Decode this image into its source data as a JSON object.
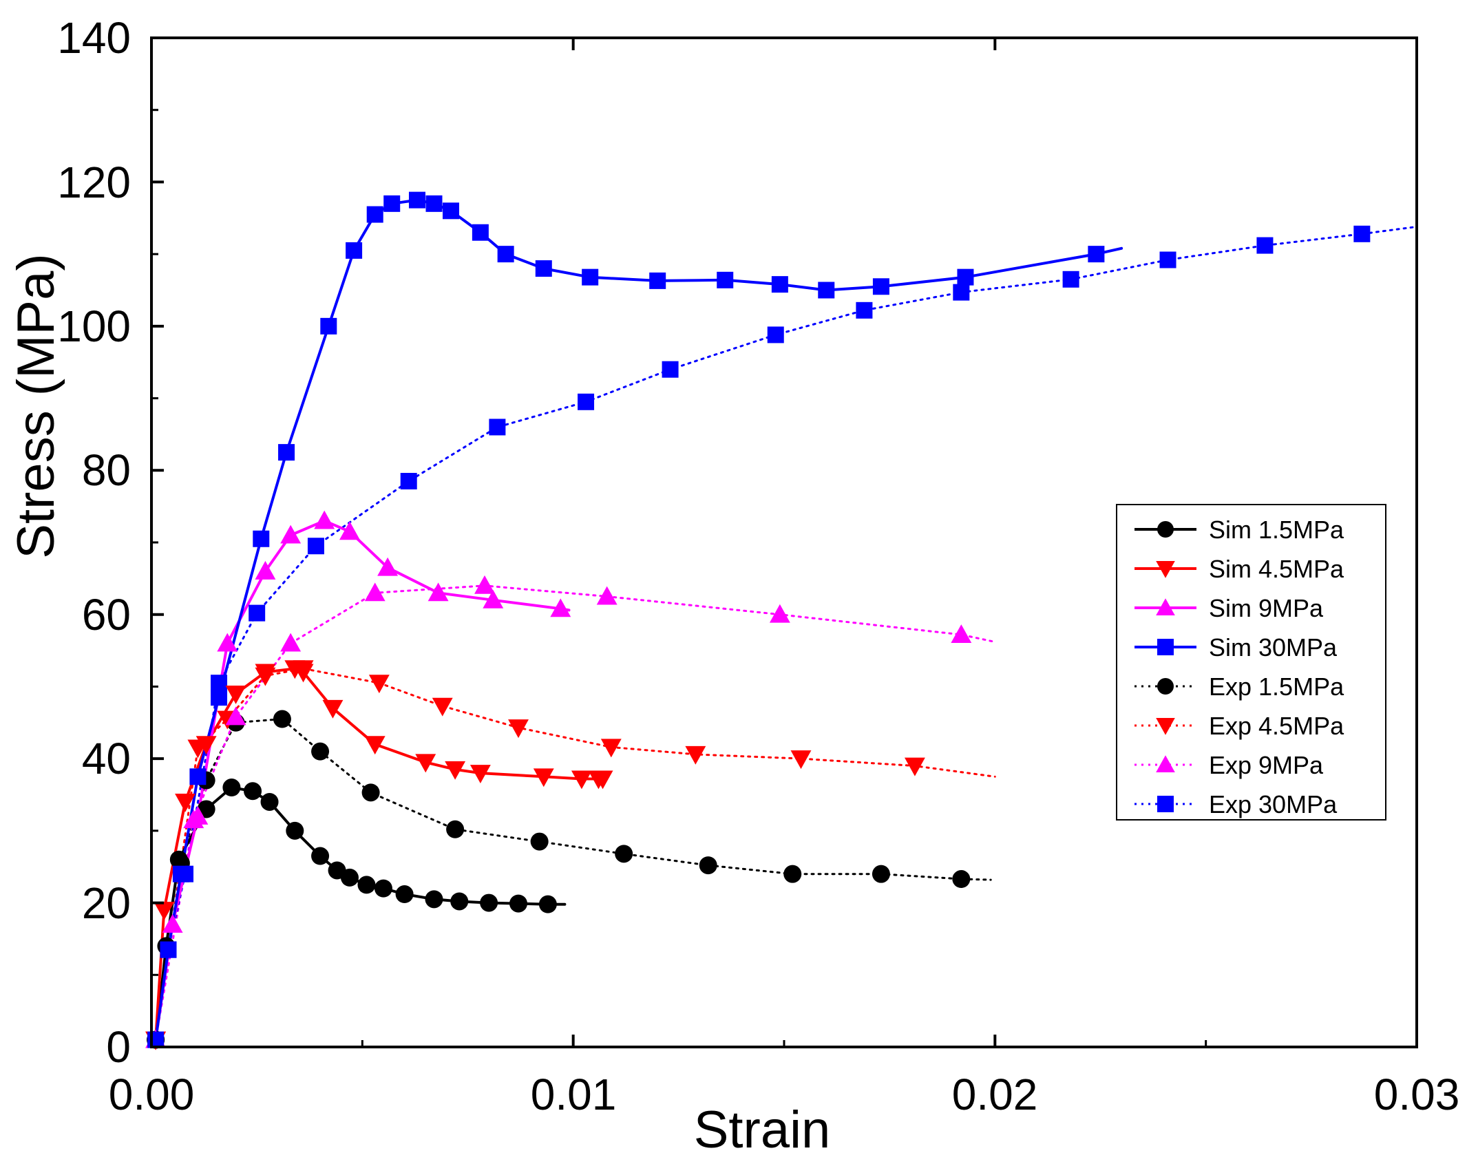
{
  "chart_data": {
    "type": "line",
    "xlabel": "Strain",
    "ylabel": "Stress (MPa)",
    "xlim": [
      0,
      0.03
    ],
    "ylim": [
      0,
      140
    ],
    "xticks": [
      0,
      0.01,
      0.02,
      0.03
    ],
    "xtick_labels": [
      "0.00",
      "0.01",
      "0.02",
      "0.03"
    ],
    "yticks": [
      0,
      20,
      40,
      60,
      80,
      100,
      120,
      140
    ],
    "ytick_labels": [
      "0",
      "20",
      "40",
      "60",
      "80",
      "100",
      "120",
      "140"
    ],
    "grid": false,
    "legend_position": "right-middle",
    "series": [
      {
        "name": "Sim 1.5MPa",
        "color": "#000000",
        "marker": "circle",
        "linestyle": "solid",
        "x": [
          0.0001,
          0.00035,
          0.00065,
          0.0013,
          0.0019,
          0.0024,
          0.0028,
          0.0034,
          0.004,
          0.0044,
          0.0047,
          0.0051,
          0.0055,
          0.006,
          0.0067,
          0.0073,
          0.008,
          0.0087,
          0.0094,
          0.0098
        ],
        "y": [
          1,
          14,
          26,
          33,
          36,
          35.5,
          34,
          30,
          26.5,
          24.5,
          23.5,
          22.5,
          22,
          21.2,
          20.5,
          20.2,
          20,
          19.9,
          19.8,
          19.8
        ]
      },
      {
        "name": "Sim 4.5MPa",
        "color": "#ff0000",
        "marker": "triangle-down",
        "linestyle": "solid",
        "x": [
          0.0001,
          0.0003,
          0.0008,
          0.0013,
          0.002,
          0.0027,
          0.0034,
          0.0036,
          0.0043,
          0.0053,
          0.0065,
          0.0072,
          0.0078,
          0.0093,
          0.0102,
          0.0106,
          0.0107
        ],
        "y": [
          1,
          19,
          34,
          42,
          49,
          52,
          52.5,
          52,
          47,
          42,
          39.5,
          38.5,
          38,
          37.5,
          37.2,
          37.2,
          37.2
        ]
      },
      {
        "name": "Sim 9MPa",
        "color": "#ff00ff",
        "marker": "triangle-up",
        "linestyle": "solid",
        "x": [
          0.0001,
          0.0005,
          0.0011,
          0.0018,
          0.0027,
          0.0033,
          0.0041,
          0.0047,
          0.0056,
          0.0068,
          0.0081,
          0.0097,
          0.0099
        ],
        "y": [
          1,
          17,
          32,
          56,
          66,
          71,
          73,
          71.5,
          66.5,
          63,
          62,
          60.8,
          60.6
        ]
      },
      {
        "name": "Sim 30MPa",
        "color": "#0000ff",
        "marker": "square",
        "linestyle": "solid",
        "x": [
          0.0001,
          0.0004,
          0.0007,
          0.0011,
          0.0016,
          0.0026,
          0.0032,
          0.0042,
          0.0048,
          0.0053,
          0.0057,
          0.0063,
          0.0067,
          0.0071,
          0.0078,
          0.0084,
          0.0093,
          0.0104,
          0.012,
          0.0136,
          0.0149,
          0.016,
          0.0173,
          0.0193,
          0.0224,
          0.023
        ],
        "y": [
          1,
          13.5,
          24,
          37.5,
          48.5,
          70.5,
          82.5,
          100,
          110.5,
          115.5,
          117,
          117.5,
          117,
          116,
          113,
          110,
          108,
          106.8,
          106.3,
          106.4,
          105.8,
          105,
          105.5,
          106.8,
          110,
          110.8
        ]
      },
      {
        "name": "Exp 1.5MPa",
        "color": "#000000",
        "marker": "circle",
        "linestyle": "dotted",
        "x": [
          0.0001,
          0.0007,
          0.0013,
          0.002,
          0.0031,
          0.004,
          0.0052,
          0.0072,
          0.0092,
          0.0112,
          0.0132,
          0.0152,
          0.0173,
          0.0192,
          0.0199
        ],
        "y": [
          1,
          25.5,
          37,
          45,
          45.5,
          41,
          35.3,
          30.2,
          28.5,
          26.8,
          25.2,
          24,
          24,
          23.3,
          23.2
        ]
      },
      {
        "name": "Exp 4.5MPa",
        "color": "#ff0000",
        "marker": "triangle-down",
        "linestyle": "dotted",
        "x": [
          0.0001,
          0.0011,
          0.0018,
          0.0027,
          0.0036,
          0.0054,
          0.0069,
          0.0087,
          0.0109,
          0.0129,
          0.0154,
          0.0181,
          0.02
        ],
        "y": [
          1,
          41.5,
          45.5,
          51.5,
          52.5,
          50.5,
          47.3,
          44.3,
          41.6,
          40.6,
          40,
          39,
          37.5
        ]
      },
      {
        "name": "Exp 9MPa",
        "color": "#ff00ff",
        "marker": "triangle-up",
        "linestyle": "dotted",
        "x": [
          0.0001,
          0.001,
          0.002,
          0.0033,
          0.0053,
          0.0079,
          0.0108,
          0.0149,
          0.0192,
          0.02
        ],
        "y": [
          1,
          31.5,
          45.8,
          56,
          63,
          64,
          62.5,
          60,
          57.2,
          56.2
        ]
      },
      {
        "name": "Exp 30MPa",
        "color": "#0000ff",
        "marker": "square",
        "linestyle": "dotted",
        "x": [
          0.0001,
          0.0004,
          0.0008,
          0.0016,
          0.0025,
          0.0039,
          0.0061,
          0.0082,
          0.0103,
          0.0123,
          0.0148,
          0.0169,
          0.0192,
          0.0218,
          0.0241,
          0.0264,
          0.0287,
          0.03
        ],
        "y": [
          1,
          13.5,
          24,
          50.5,
          60.2,
          69.5,
          78.5,
          86,
          89.5,
          94,
          98.8,
          102.2,
          104.7,
          106.5,
          109.2,
          111.2,
          112.8,
          113.8
        ]
      }
    ]
  }
}
